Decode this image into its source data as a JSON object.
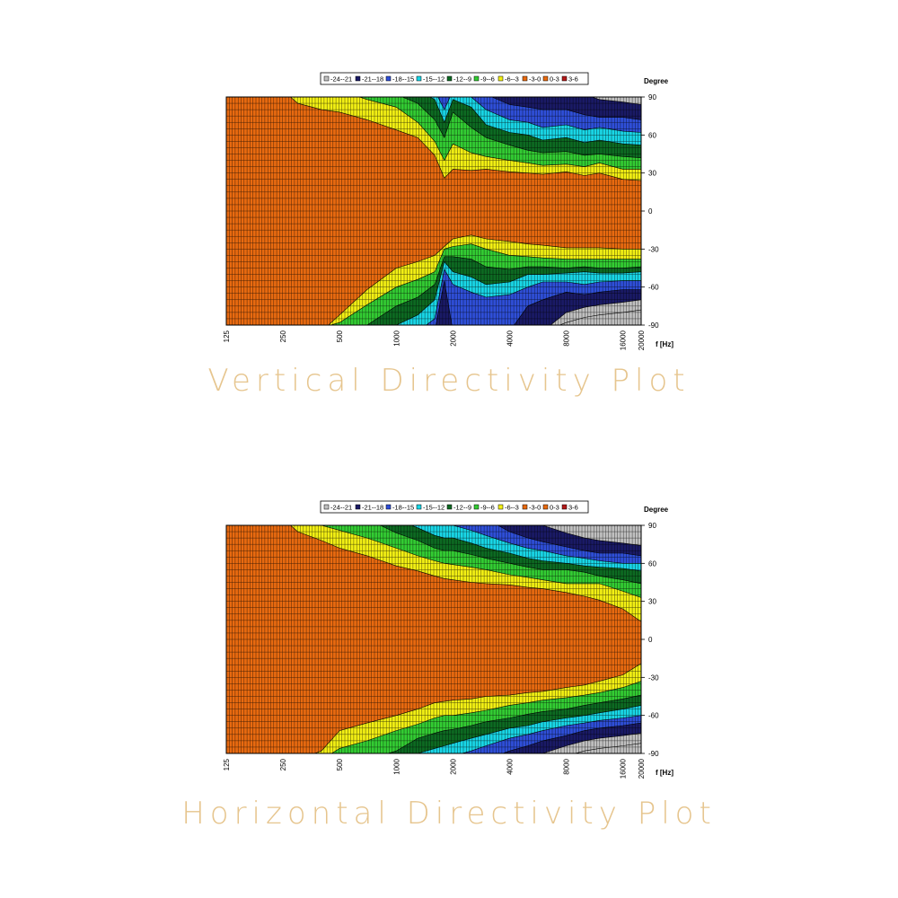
{
  "captions": {
    "vertical": "Vertical Directivity Plot",
    "horizontal": "Horizontal Directivity Plot"
  },
  "chart_data": [
    {
      "type": "heatmap",
      "title": "",
      "xlabel": "f [Hz]",
      "ylabel": "Degree",
      "xscale": "log",
      "xlim": [
        125,
        20000
      ],
      "ylim": [
        -90,
        90
      ],
      "x_ticks": [
        "125",
        "250",
        "500",
        "1000",
        "2000",
        "4000",
        "8000",
        "16000",
        "20000"
      ],
      "x_tick_values": [
        125,
        250,
        500,
        1000,
        2000,
        4000,
        8000,
        16000,
        20000
      ],
      "y_ticks": [
        "90",
        "60",
        "30",
        "0",
        "-30",
        "-60",
        "-90"
      ],
      "y_tick_values": [
        90,
        60,
        30,
        0,
        -30,
        -60,
        -90
      ],
      "grid": true,
      "legend_position": "top",
      "legend": [
        {
          "label": "-24--21",
          "color": "#c0c0c0"
        },
        {
          "label": "-21--18",
          "color": "#1a1a66"
        },
        {
          "label": "-18--15",
          "color": "#2f4fd8"
        },
        {
          "label": "-15--12",
          "color": "#19d6e6"
        },
        {
          "label": "-12--9",
          "color": "#0d6a22"
        },
        {
          "label": "-9--6",
          "color": "#33cc33"
        },
        {
          "label": "-6--3",
          "color": "#f2ef14"
        },
        {
          "label": "-3-0",
          "color": "#e86a10"
        },
        {
          "label": "0-3",
          "color": "#e86a10"
        },
        {
          "label": "3-6",
          "color": "#b31a1a"
        }
      ],
      "upper_contours": {
        "freqs": [
          125,
          250,
          300,
          400,
          500,
          700,
          1000,
          1300,
          1600,
          1800,
          2000,
          2500,
          3000,
          4000,
          5000,
          6000,
          8000,
          10000,
          12000,
          16000,
          20000
        ],
        "lvl_-3": [
          95,
          95,
          85,
          80,
          78,
          72,
          64,
          58,
          44,
          26,
          33,
          32,
          33,
          31,
          30,
          29,
          31,
          28,
          30,
          25,
          24
        ],
        "lvl_-6": [
          95,
          95,
          95,
          95,
          95,
          88,
          82,
          70,
          55,
          40,
          53,
          46,
          43,
          40,
          38,
          36,
          37,
          35,
          38,
          33,
          33
        ],
        "lvl_-9": [
          95,
          95,
          95,
          95,
          95,
          95,
          92,
          85,
          72,
          58,
          78,
          66,
          58,
          52,
          48,
          46,
          47,
          44,
          45,
          43,
          42
        ],
        "lvl_-12": [
          95,
          95,
          95,
          95,
          95,
          95,
          95,
          95,
          88,
          70,
          88,
          82,
          68,
          62,
          60,
          56,
          58,
          54,
          56,
          53,
          52
        ],
        "lvl_-15": [
          95,
          95,
          95,
          95,
          95,
          95,
          95,
          95,
          95,
          80,
          95,
          90,
          80,
          72,
          70,
          66,
          68,
          64,
          66,
          63,
          62
        ],
        "lvl_-18": [
          95,
          95,
          95,
          95,
          95,
          95,
          95,
          95,
          95,
          95,
          95,
          95,
          92,
          84,
          82,
          80,
          80,
          76,
          74,
          74,
          72
        ],
        "lvl_-21": [
          95,
          95,
          95,
          95,
          95,
          95,
          95,
          95,
          95,
          95,
          95,
          95,
          95,
          95,
          95,
          95,
          95,
          92,
          88,
          86,
          84
        ]
      },
      "lower_contours": {
        "freqs": [
          125,
          250,
          300,
          400,
          500,
          700,
          1000,
          1300,
          1600,
          1800,
          2000,
          2500,
          3000,
          4000,
          5000,
          6000,
          8000,
          10000,
          12000,
          16000,
          20000
        ],
        "lvl_-3": [
          95,
          95,
          95,
          95,
          82,
          62,
          45,
          40,
          35,
          28,
          22,
          19,
          22,
          24,
          26,
          27,
          29,
          29,
          29,
          30,
          30
        ],
        "lvl_-6": [
          95,
          95,
          95,
          92,
          88,
          74,
          60,
          54,
          48,
          30,
          28,
          26,
          30,
          35,
          36,
          37,
          38,
          38,
          38,
          38,
          38
        ],
        "lvl_-9": [
          95,
          95,
          95,
          95,
          95,
          90,
          75,
          68,
          58,
          36,
          36,
          38,
          44,
          46,
          44,
          44,
          45,
          44,
          45,
          45,
          44
        ],
        "lvl_-12": [
          95,
          95,
          95,
          95,
          95,
          95,
          90,
          82,
          70,
          40,
          48,
          52,
          58,
          56,
          50,
          50,
          49,
          48,
          49,
          49,
          48
        ],
        "lvl_-15": [
          95,
          95,
          95,
          95,
          95,
          95,
          95,
          95,
          85,
          46,
          58,
          64,
          68,
          66,
          60,
          56,
          56,
          58,
          56,
          55,
          55
        ],
        "lvl_-18": [
          95,
          95,
          95,
          95,
          95,
          95,
          95,
          95,
          95,
          55,
          95,
          95,
          95,
          95,
          75,
          70,
          64,
          66,
          64,
          62,
          62
        ],
        "lvl_-21": [
          95,
          95,
          95,
          95,
          95,
          95,
          95,
          95,
          95,
          95,
          95,
          95,
          95,
          95,
          95,
          95,
          80,
          76,
          74,
          72,
          70
        ],
        "lvl_-24": [
          95,
          95,
          95,
          95,
          95,
          95,
          95,
          95,
          95,
          95,
          95,
          95,
          95,
          95,
          95,
          95,
          88,
          84,
          82,
          80,
          78
        ]
      }
    },
    {
      "type": "heatmap",
      "title": "",
      "xlabel": "f [Hz]",
      "ylabel": "Degree",
      "xscale": "log",
      "xlim": [
        125,
        20000
      ],
      "ylim": [
        -90,
        90
      ],
      "x_ticks": [
        "125",
        "250",
        "500",
        "1000",
        "2000",
        "4000",
        "8000",
        "16000",
        "20000"
      ],
      "x_tick_values": [
        125,
        250,
        500,
        1000,
        2000,
        4000,
        8000,
        16000,
        20000
      ],
      "y_ticks": [
        "90",
        "60",
        "30",
        "0",
        "-30",
        "-60",
        "-90"
      ],
      "y_tick_values": [
        90,
        60,
        30,
        0,
        -30,
        -60,
        -90
      ],
      "grid": true,
      "legend_position": "top",
      "legend": [
        {
          "label": "-24--21",
          "color": "#c0c0c0"
        },
        {
          "label": "-21--18",
          "color": "#1a1a66"
        },
        {
          "label": "-18--15",
          "color": "#2f4fd8"
        },
        {
          "label": "-15--12",
          "color": "#19d6e6"
        },
        {
          "label": "-12--9",
          "color": "#0d6a22"
        },
        {
          "label": "-9--6",
          "color": "#33cc33"
        },
        {
          "label": "-6--3",
          "color": "#f2ef14"
        },
        {
          "label": "-3-0",
          "color": "#e86a10"
        },
        {
          "label": "0-3",
          "color": "#e86a10"
        },
        {
          "label": "3-6",
          "color": "#b31a1a"
        }
      ],
      "upper_contours": {
        "freqs": [
          125,
          250,
          300,
          400,
          500,
          700,
          1000,
          1300,
          1600,
          1800,
          2000,
          2500,
          3000,
          4000,
          5000,
          6000,
          8000,
          10000,
          12000,
          16000,
          20000
        ],
        "lvl_-3": [
          95,
          95,
          85,
          78,
          72,
          66,
          58,
          54,
          50,
          48,
          47,
          45,
          44,
          43,
          41,
          40,
          37,
          34,
          31,
          24,
          14
        ],
        "lvl_-6": [
          95,
          95,
          95,
          90,
          86,
          80,
          72,
          66,
          62,
          60,
          59,
          57,
          55,
          51,
          49,
          47,
          44,
          44,
          44,
          38,
          33
        ],
        "lvl_-9": [
          95,
          95,
          95,
          95,
          95,
          95,
          84,
          78,
          72,
          70,
          70,
          67,
          64,
          60,
          57,
          55,
          55,
          53,
          50,
          47,
          44
        ],
        "lvl_-12": [
          95,
          95,
          95,
          95,
          95,
          95,
          95,
          88,
          82,
          80,
          80,
          76,
          72,
          68,
          64,
          62,
          60,
          58,
          57,
          56,
          54
        ],
        "lvl_-15": [
          95,
          95,
          95,
          95,
          95,
          95,
          95,
          95,
          92,
          90,
          90,
          86,
          82,
          76,
          72,
          70,
          66,
          64,
          62,
          60,
          60
        ],
        "lvl_-18": [
          95,
          95,
          95,
          95,
          95,
          95,
          95,
          95,
          95,
          95,
          95,
          95,
          95,
          85,
          80,
          77,
          73,
          70,
          68,
          68,
          66
        ],
        "lvl_-21": [
          95,
          95,
          95,
          95,
          95,
          95,
          95,
          95,
          95,
          95,
          95,
          95,
          95,
          95,
          92,
          90,
          84,
          80,
          78,
          76,
          74
        ]
      },
      "lower_contours": {
        "freqs": [
          125,
          250,
          300,
          400,
          500,
          700,
          1000,
          1300,
          1600,
          1800,
          2000,
          2500,
          3000,
          4000,
          5000,
          6000,
          8000,
          10000,
          12000,
          16000,
          20000
        ],
        "lvl_-3": [
          95,
          95,
          95,
          88,
          72,
          66,
          60,
          55,
          50,
          49,
          48,
          47,
          45,
          44,
          42,
          41,
          38,
          36,
          33,
          28,
          19
        ],
        "lvl_-6": [
          95,
          95,
          95,
          95,
          86,
          80,
          72,
          67,
          62,
          60,
          60,
          58,
          56,
          52,
          50,
          48,
          46,
          44,
          42,
          38,
          33
        ],
        "lvl_-9": [
          95,
          95,
          95,
          95,
          95,
          95,
          88,
          78,
          74,
          72,
          71,
          68,
          65,
          62,
          59,
          57,
          55,
          52,
          50,
          47,
          44
        ],
        "lvl_-12": [
          95,
          95,
          95,
          95,
          95,
          95,
          95,
          90,
          86,
          84,
          82,
          78,
          75,
          70,
          68,
          65,
          62,
          60,
          58,
          55,
          52
        ],
        "lvl_-15": [
          95,
          95,
          95,
          95,
          95,
          95,
          95,
          95,
          95,
          95,
          92,
          88,
          84,
          78,
          75,
          72,
          68,
          66,
          64,
          62,
          60
        ],
        "lvl_-18": [
          95,
          95,
          95,
          95,
          95,
          95,
          95,
          95,
          95,
          95,
          95,
          95,
          95,
          88,
          84,
          80,
          76,
          72,
          70,
          68,
          66
        ],
        "lvl_-21": [
          95,
          95,
          95,
          95,
          95,
          95,
          95,
          95,
          95,
          95,
          95,
          95,
          95,
          95,
          95,
          90,
          84,
          80,
          78,
          76,
          74
        ],
        "lvl_-24": [
          95,
          95,
          95,
          95,
          95,
          95,
          95,
          95,
          95,
          95,
          95,
          95,
          95,
          95,
          95,
          95,
          92,
          88,
          86,
          84,
          82
        ]
      }
    }
  ]
}
